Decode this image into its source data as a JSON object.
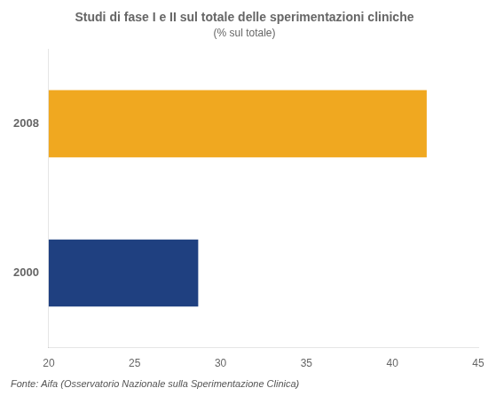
{
  "chart_data": {
    "type": "bar",
    "orientation": "horizontal",
    "title": "Studi di fase I e II sul totale delle sperimentazioni cliniche",
    "subtitle": "(% sul totale)",
    "annotations": [
      "Fonte: Aifa (Osservatorio Nazionale sulla Sperimentazione Clinica)"
    ],
    "categories": [
      "2008",
      "2000"
    ],
    "values": [
      42.0,
      28.7
    ],
    "colors": [
      "#f0a820",
      "#1f4080"
    ],
    "xlim": [
      20,
      45
    ],
    "xticks": [
      20,
      25,
      30,
      35,
      40,
      45
    ],
    "grid": false
  }
}
